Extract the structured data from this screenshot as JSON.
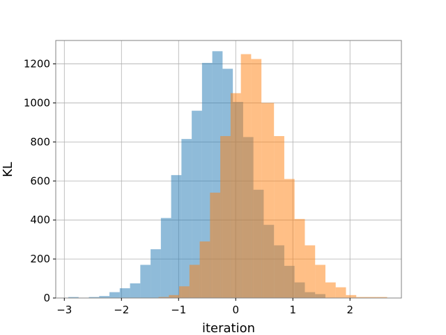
{
  "chart_data": {
    "type": "bar",
    "subtype": "overlaid-histogram",
    "title": "",
    "xlabel": "iteration",
    "ylabel": "KL",
    "xlim": [
      -3.15,
      2.9
    ],
    "ylim": [
      0,
      1320
    ],
    "xticks": [
      -3,
      -2,
      -1,
      0,
      1,
      2
    ],
    "yticks": [
      0,
      200,
      400,
      600,
      800,
      1000,
      1200
    ],
    "grid": true,
    "legend": "none",
    "series": [
      {
        "color": "#1f77b4",
        "opacity": 0.5,
        "bin_edges": [
          -2.93,
          -2.75,
          -2.57,
          -2.39,
          -2.21,
          -2.03,
          -1.85,
          -1.67,
          -1.49,
          -1.31,
          -1.13,
          -0.95,
          -0.77,
          -0.59,
          -0.41,
          -0.23,
          -0.05,
          0.13,
          0.31,
          0.49,
          0.67,
          0.85,
          1.03,
          1.21,
          1.39,
          1.57
        ],
        "counts": [
          5,
          0,
          5,
          10,
          30,
          50,
          75,
          170,
          250,
          410,
          630,
          815,
          960,
          1205,
          1265,
          1175,
          1005,
          825,
          555,
          375,
          270,
          165,
          80,
          30,
          20
        ]
      },
      {
        "color": "#ff7f0e",
        "opacity": 0.5,
        "bin_edges": [
          -1.35,
          -1.17,
          -0.99,
          -0.81,
          -0.63,
          -0.45,
          -0.27,
          -0.09,
          0.09,
          0.27,
          0.45,
          0.67,
          0.85,
          1.03,
          1.21,
          1.39,
          1.57,
          1.75,
          1.93,
          2.11,
          2.29,
          2.47,
          2.65
        ],
        "counts": [
          5,
          15,
          60,
          170,
          290,
          540,
          830,
          1050,
          1250,
          1225,
          1000,
          830,
          610,
          405,
          270,
          170,
          80,
          55,
          15,
          5,
          5,
          5
        ]
      }
    ]
  }
}
